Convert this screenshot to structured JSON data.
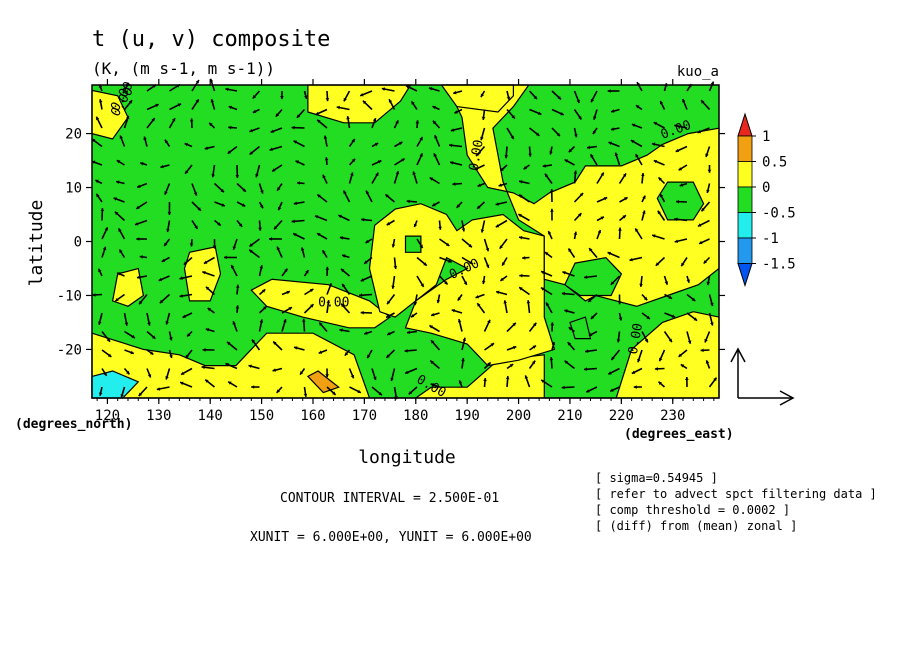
{
  "chart_data": {
    "type": "heatmap",
    "title": "t (u, v) composite",
    "subtitle": "(K, (m s-1, m s-1))",
    "corner_label": "kuo_a",
    "xlabel": "longitude",
    "ylabel": "latitude",
    "x_unit_label": "(degrees_east)",
    "y_unit_label": "(degrees_north)",
    "xlim": [
      117,
      239
    ],
    "ylim": [
      -29,
      29
    ],
    "x_ticks": [
      120,
      130,
      140,
      150,
      160,
      170,
      180,
      190,
      200,
      210,
      220,
      230
    ],
    "y_ticks": [
      20,
      10,
      0,
      -10,
      -20
    ],
    "legend": {
      "placement": "right",
      "labels": [
        "1",
        "0.5",
        "0",
        "-0.5",
        "-1",
        "-1.5"
      ],
      "levels": [
        1,
        0.5,
        0,
        -0.5,
        -1,
        -1.5
      ],
      "colors": [
        "#e8281e",
        "#f0a010",
        "#ffff22",
        "#22dd22",
        "#22eeee",
        "#2299ee",
        "#0055ee"
      ]
    },
    "colors": {
      "positive": "#ffff22",
      "negative": "#22dd22",
      "strong_positive": "#f0a010",
      "strong_negative": "#22eeee"
    },
    "contour_labels": [
      "0.00",
      "0.00",
      "0.00",
      "0.00",
      "0.00",
      "0.00",
      "0.00",
      "0.00"
    ],
    "regions": [
      {
        "level": "positive",
        "poly": [
          [
            117,
            -29
          ],
          [
            239,
            -29
          ],
          [
            239,
            -14
          ],
          [
            234,
            -13
          ],
          [
            228,
            -15
          ],
          [
            222,
            -20
          ],
          [
            219,
            -29
          ],
          [
            205,
            -29
          ],
          [
            205,
            -21
          ],
          [
            196,
            -22
          ],
          [
            190,
            -27
          ],
          [
            183,
            -27
          ],
          [
            180,
            -29
          ],
          [
            171,
            -29
          ],
          [
            168,
            -21
          ],
          [
            160,
            -17
          ],
          [
            151,
            -17
          ],
          [
            145,
            -23
          ],
          [
            139,
            -23
          ],
          [
            134,
            -21
          ],
          [
            127,
            -20
          ],
          [
            117,
            -17
          ]
        ]
      },
      {
        "level": "positive",
        "poly": [
          [
            167,
            -16
          ],
          [
            158,
            -14
          ],
          [
            151,
            -12
          ],
          [
            148,
            -9
          ],
          [
            152,
            -7
          ],
          [
            163,
            -8
          ],
          [
            171,
            -11
          ],
          [
            175,
            -14
          ],
          [
            172,
            -16
          ]
        ]
      },
      {
        "level": "positive",
        "poly": [
          [
            173,
            -13
          ],
          [
            171,
            -5
          ],
          [
            172,
            3
          ],
          [
            176,
            6
          ],
          [
            181,
            7
          ],
          [
            186,
            5
          ],
          [
            188,
            2
          ],
          [
            191,
            4
          ],
          [
            197,
            5
          ],
          [
            201,
            2
          ],
          [
            205,
            1
          ],
          [
            205,
            -7
          ],
          [
            205,
            -14
          ],
          [
            207,
            -20
          ],
          [
            200,
            -22
          ],
          [
            194,
            -23
          ],
          [
            190,
            -19
          ],
          [
            183,
            -17
          ],
          [
            178,
            -16
          ],
          [
            180,
            -11
          ],
          [
            186,
            -7
          ],
          [
            190,
            -5
          ],
          [
            186,
            -3
          ],
          [
            184,
            -8
          ],
          [
            180,
            -11
          ],
          [
            176,
            -14
          ]
        ]
      },
      {
        "level": "positive",
        "poly": [
          [
            186,
            29
          ],
          [
            189,
            23
          ],
          [
            190,
            16
          ],
          [
            194,
            10
          ],
          [
            199,
            9
          ],
          [
            203,
            7
          ],
          [
            206,
            9
          ],
          [
            211,
            11
          ],
          [
            213,
            14
          ],
          [
            220,
            14
          ],
          [
            225,
            16
          ],
          [
            228,
            18
          ],
          [
            233,
            20
          ],
          [
            239,
            21
          ],
          [
            239,
            -5
          ],
          [
            235,
            -8
          ],
          [
            229,
            -10
          ],
          [
            223,
            -12
          ],
          [
            215,
            -10
          ],
          [
            213,
            -11
          ],
          [
            209,
            -8
          ],
          [
            205,
            -7
          ],
          [
            205,
            1
          ],
          [
            200,
            4
          ],
          [
            197,
            11
          ],
          [
            195,
            21
          ],
          [
            199,
            25
          ],
          [
            202,
            29
          ]
        ]
      },
      {
        "level": "positive",
        "poly": [
          [
            159,
            29
          ],
          [
            159,
            24
          ],
          [
            166,
            22
          ],
          [
            172,
            22
          ],
          [
            177,
            26
          ],
          [
            179,
            29
          ]
        ]
      },
      {
        "level": "positive",
        "poly": [
          [
            185,
            29
          ],
          [
            188,
            25
          ],
          [
            196,
            24
          ],
          [
            199,
            27
          ],
          [
            199,
            29
          ]
        ]
      },
      {
        "level": "positive",
        "poly": [
          [
            117,
            28
          ],
          [
            117,
            20
          ],
          [
            121,
            19
          ],
          [
            124,
            23
          ],
          [
            122,
            27
          ]
        ]
      },
      {
        "level": "positive",
        "poly": [
          [
            135,
            -5
          ],
          [
            136,
            -2
          ],
          [
            141,
            -1
          ],
          [
            142,
            -6
          ],
          [
            140,
            -11
          ],
          [
            136,
            -11
          ]
        ]
      },
      {
        "level": "positive",
        "poly": [
          [
            121,
            -11
          ],
          [
            122,
            -6
          ],
          [
            126,
            -5
          ],
          [
            127,
            -10
          ],
          [
            124,
            -12
          ]
        ]
      },
      {
        "level": "negative",
        "poly": [
          [
            178,
            1
          ],
          [
            181,
            1
          ],
          [
            181,
            -2
          ],
          [
            178,
            -2
          ]
        ]
      },
      {
        "level": "negative",
        "poly": [
          [
            211,
            -4
          ],
          [
            217,
            -3
          ],
          [
            220,
            -6
          ],
          [
            218,
            -10
          ],
          [
            212,
            -10
          ],
          [
            209,
            -8
          ]
        ]
      },
      {
        "level": "negative",
        "poly": [
          [
            229,
            11
          ],
          [
            234,
            11
          ],
          [
            236,
            7
          ],
          [
            234,
            4
          ],
          [
            229,
            4
          ],
          [
            227,
            8
          ]
        ]
      },
      {
        "level": "negative",
        "poly": [
          [
            210,
            -15
          ],
          [
            213,
            -14
          ],
          [
            214,
            -18
          ],
          [
            211,
            -18
          ]
        ]
      },
      {
        "level": "strong_positive",
        "poly": [
          [
            161,
            -24
          ],
          [
            165,
            -27
          ],
          [
            162,
            -28
          ],
          [
            159,
            -25
          ]
        ]
      },
      {
        "level": "strong_negative",
        "poly": [
          [
            117,
            -25
          ],
          [
            121,
            -24
          ],
          [
            126,
            -26
          ],
          [
            123,
            -29
          ],
          [
            117,
            -29
          ]
        ]
      }
    ],
    "info_lines": [
      "[ sigma=0.54945 ]",
      "[ refer to advect spct filtering data ]",
      "[ comp threshold = 0.0002 ]",
      "[ (diff) from (mean) zonal ]"
    ],
    "contour_interval_text": "CONTOUR INTERVAL = 2.500E-01",
    "unit_vector_text": "XUNIT = 6.000E+00, YUNIT = 6.000E+00"
  }
}
